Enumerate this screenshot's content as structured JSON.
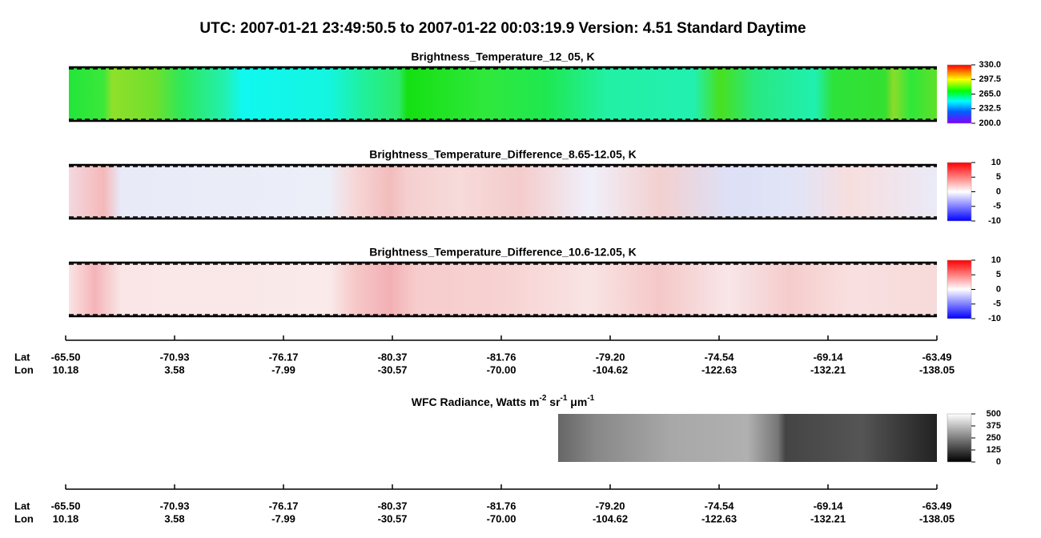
{
  "title": "UTC:  2007-01-21   23:49:50.5  to  2007-01-22   00:03:19.9    Version: 4.51  Standard Daytime",
  "panels": [
    {
      "title": "Brightness_Temperature_12_05, K",
      "colorbar_ticks": [
        "330.0",
        "297.5",
        "265.0",
        "232.5",
        "200.0"
      ]
    },
    {
      "title": "Brightness_Temperature_Difference_8.65-12.05, K",
      "colorbar_ticks": [
        "10",
        "5",
        "0",
        "-5",
        "-10"
      ]
    },
    {
      "title": "Brightness_Temperature_Difference_10.6-12.05, K",
      "colorbar_ticks": [
        "10",
        "5",
        "0",
        "-5",
        "-10"
      ]
    }
  ],
  "wfc": {
    "title_parts": [
      "WFC Radiance, Watts m",
      "-2",
      " sr",
      "-1",
      " μm",
      "-1"
    ],
    "colorbar_ticks": [
      "500",
      "375",
      "250",
      "125",
      "0"
    ]
  },
  "axes": [
    {
      "row_labels": [
        "Lat",
        "Lon"
      ],
      "lat": [
        "-65.50",
        "-70.93",
        "-76.17",
        "-80.37",
        "-81.76",
        "-79.20",
        "-74.54",
        "-69.14",
        "-63.49"
      ],
      "lon": [
        "10.18",
        "3.58",
        "-7.99",
        "-30.57",
        "-70.00",
        "-104.62",
        "-122.63",
        "-132.21",
        "-138.05"
      ]
    },
    {
      "row_labels": [
        "Lat",
        "Lon"
      ],
      "lat": [
        "-65.50",
        "-70.93",
        "-76.17",
        "-80.37",
        "-81.76",
        "-79.20",
        "-74.54",
        "-69.14",
        "-63.49"
      ],
      "lon": [
        "10.18",
        "3.58",
        "-7.99",
        "-30.57",
        "-70.00",
        "-104.62",
        "-122.63",
        "-132.21",
        "-138.05"
      ]
    }
  ]
}
